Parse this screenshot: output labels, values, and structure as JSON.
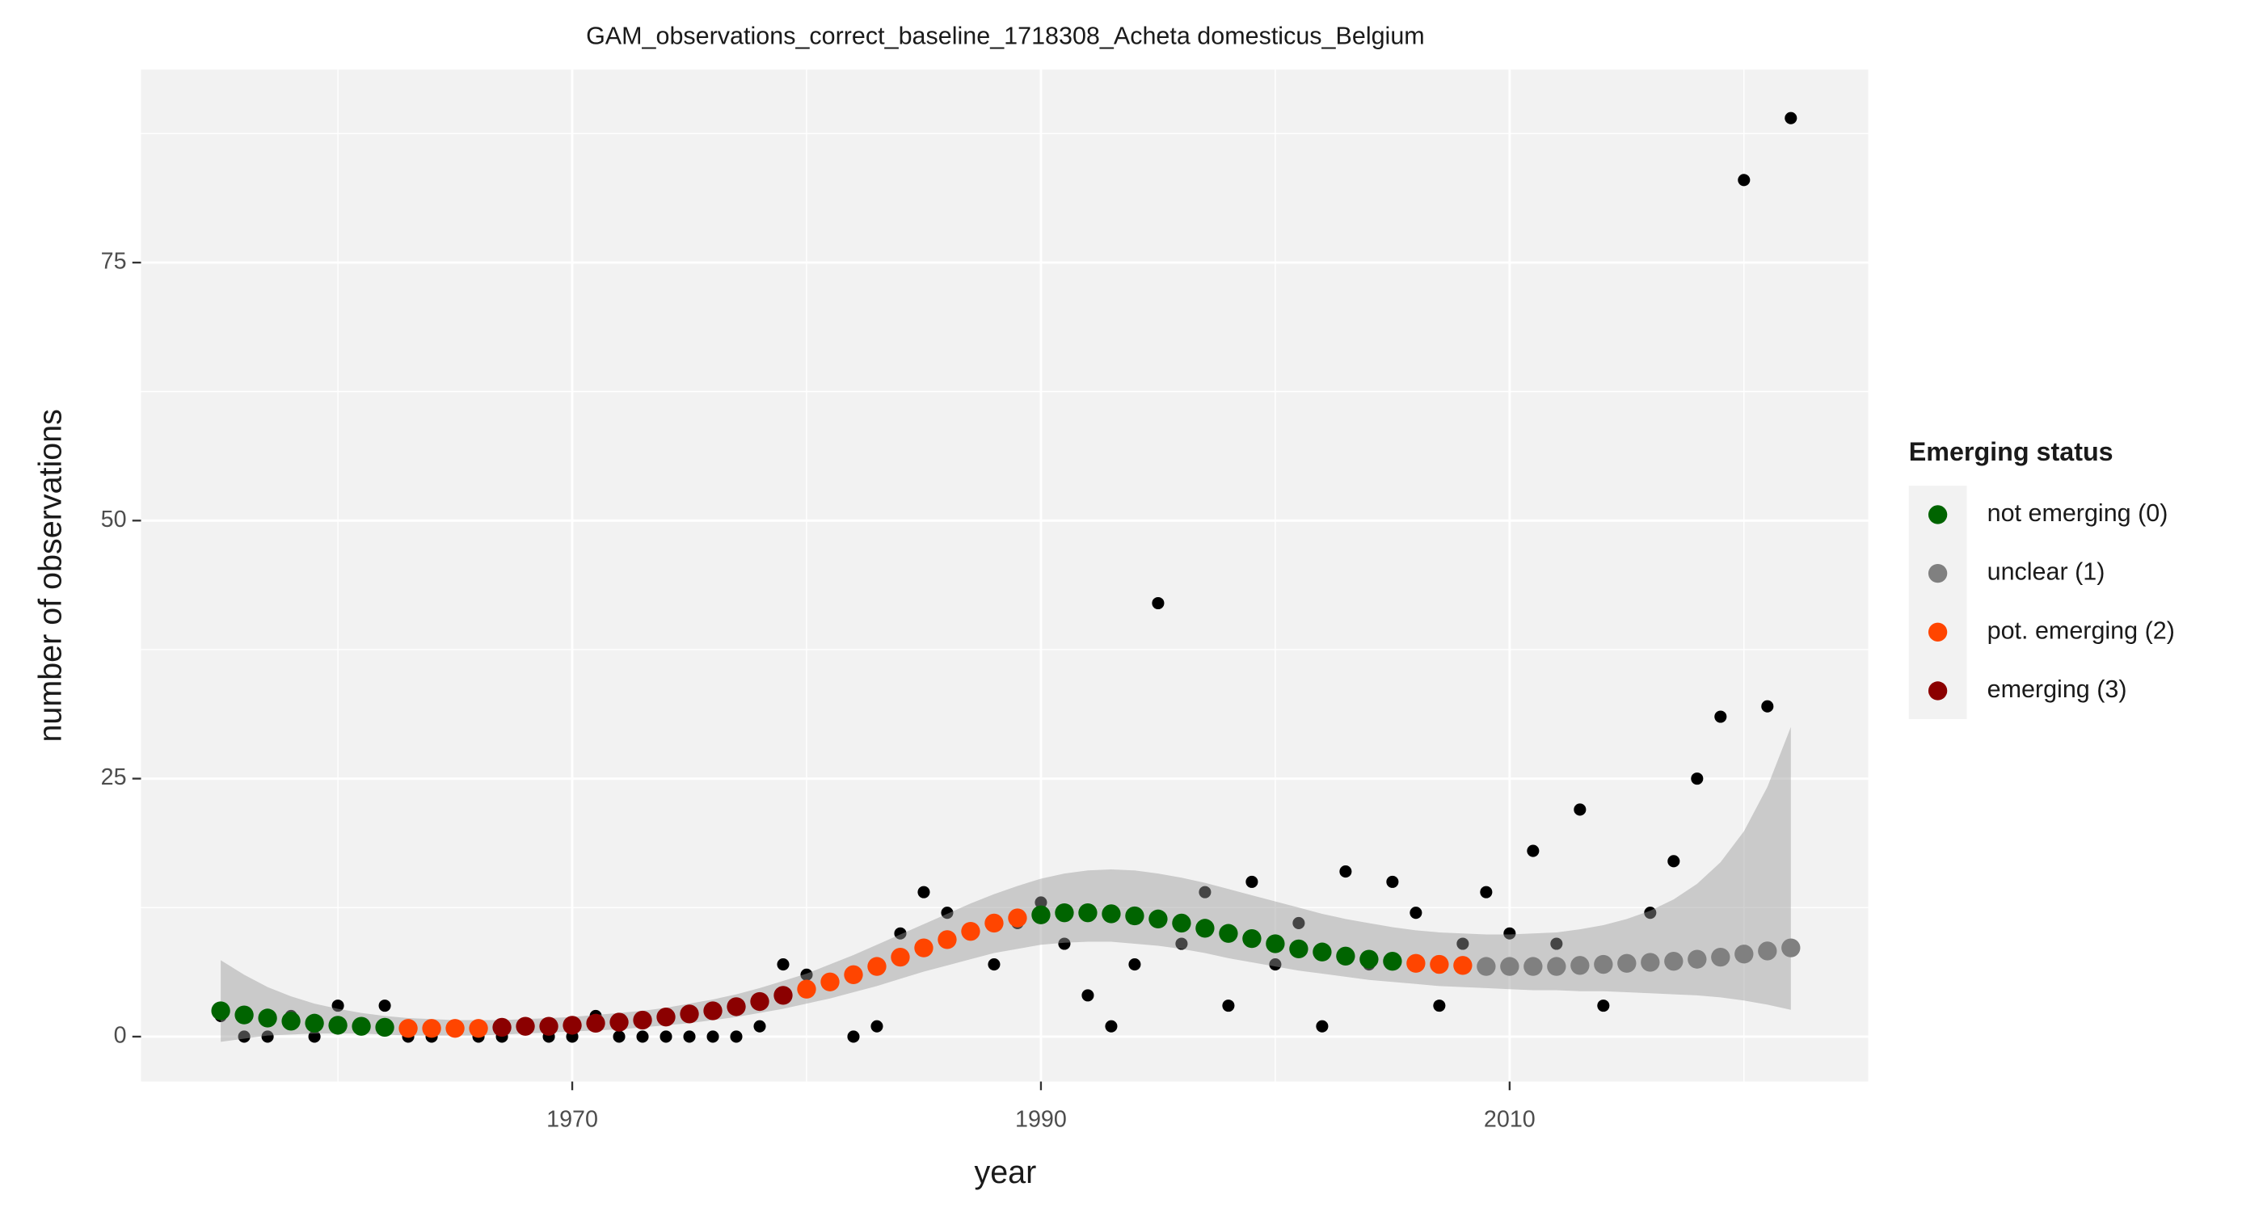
{
  "chart_data": {
    "type": "scatter",
    "title": "GAM_observations_correct_baseline_1718308_Acheta domesticus_Belgium",
    "x_label": "year",
    "y_label": "number of observations",
    "x": [
      1955,
      1956,
      1957,
      1958,
      1959,
      1960,
      1961,
      1962,
      1963,
      1964,
      1965,
      1966,
      1967,
      1968,
      1969,
      1970,
      1971,
      1972,
      1973,
      1974,
      1975,
      1976,
      1977,
      1978,
      1979,
      1980,
      1981,
      1982,
      1983,
      1984,
      1985,
      1986,
      1987,
      1988,
      1989,
      1990,
      1991,
      1992,
      1993,
      1994,
      1995,
      1996,
      1997,
      1998,
      1999,
      2000,
      2001,
      2002,
      2003,
      2004,
      2005,
      2006,
      2007,
      2008,
      2009,
      2010,
      2011,
      2012,
      2013,
      2014,
      2015,
      2016,
      2017,
      2018,
      2019,
      2020,
      2021,
      2022
    ],
    "observed": [
      2,
      0,
      0,
      2,
      0,
      3,
      1,
      3,
      0,
      0,
      1,
      0,
      0,
      1,
      0,
      0,
      2,
      0,
      0,
      0,
      0,
      0,
      0,
      1,
      7,
      6,
      5,
      0,
      1,
      10,
      14,
      12,
      10,
      7,
      11,
      13,
      9,
      4,
      1,
      7,
      42,
      9,
      14,
      3,
      15,
      7,
      11,
      1,
      16,
      7,
      15,
      12,
      3,
      9,
      14,
      10,
      18,
      9,
      22,
      3,
      7,
      12,
      17,
      25,
      31,
      83,
      32,
      89
    ],
    "observed_color": "#000000",
    "fitted": [
      2.5,
      2.1,
      1.8,
      1.5,
      1.3,
      1.1,
      1.0,
      0.9,
      0.8,
      0.8,
      0.8,
      0.8,
      0.9,
      1.0,
      1.0,
      1.1,
      1.3,
      1.4,
      1.6,
      1.9,
      2.2,
      2.5,
      2.9,
      3.4,
      4.0,
      4.6,
      5.3,
      6.0,
      6.8,
      7.7,
      8.6,
      9.4,
      10.2,
      11.0,
      11.5,
      11.8,
      12.0,
      12.0,
      11.9,
      11.7,
      11.4,
      11.0,
      10.5,
      10.0,
      9.5,
      9.0,
      8.5,
      8.2,
      7.8,
      7.5,
      7.3,
      7.1,
      7.0,
      6.9,
      6.8,
      6.8,
      6.8,
      6.8,
      6.9,
      7.0,
      7.1,
      7.2,
      7.3,
      7.5,
      7.7,
      8.0,
      8.3,
      8.6
    ],
    "status": [
      0,
      0,
      0,
      0,
      0,
      0,
      0,
      0,
      2,
      2,
      2,
      2,
      3,
      3,
      3,
      3,
      3,
      3,
      3,
      3,
      3,
      3,
      3,
      3,
      3,
      2,
      2,
      2,
      2,
      2,
      2,
      2,
      2,
      2,
      2,
      0,
      0,
      0,
      0,
      0,
      0,
      0,
      0,
      0,
      0,
      0,
      0,
      0,
      0,
      0,
      0,
      2,
      2,
      2,
      1,
      1,
      1,
      1,
      1,
      1,
      1,
      1,
      1,
      1,
      1,
      1,
      1,
      1
    ],
    "lower": [
      -0.5,
      -0.2,
      0.1,
      0.2,
      0.3,
      0.3,
      0.3,
      0.2,
      0.1,
      0.1,
      0.1,
      0.1,
      0.2,
      0.3,
      0.4,
      0.5,
      0.6,
      0.7,
      0.9,
      1.1,
      1.3,
      1.6,
      1.9,
      2.3,
      2.7,
      3.2,
      3.7,
      4.3,
      4.9,
      5.6,
      6.3,
      6.9,
      7.5,
      8.1,
      8.5,
      8.9,
      9.1,
      9.2,
      9.2,
      9.0,
      8.8,
      8.5,
      8.1,
      7.6,
      7.2,
      6.8,
      6.4,
      6.1,
      5.8,
      5.5,
      5.3,
      5.1,
      4.9,
      4.8,
      4.7,
      4.6,
      4.5,
      4.5,
      4.4,
      4.4,
      4.3,
      4.2,
      4.1,
      4.0,
      3.8,
      3.5,
      3.1,
      2.6
    ],
    "upper": [
      7.4,
      6,
      4.8,
      3.9,
      3.2,
      2.7,
      2.3,
      2.0,
      1.8,
      1.7,
      1.6,
      1.6,
      1.6,
      1.7,
      1.8,
      1.9,
      2.1,
      2.3,
      2.5,
      2.8,
      3.2,
      3.6,
      4.1,
      4.7,
      5.4,
      6.1,
      7.0,
      7.9,
      8.9,
      9.9,
      10.9,
      11.9,
      12.9,
      13.8,
      14.6,
      15.3,
      15.8,
      16.1,
      16.2,
      16.1,
      15.8,
      15.4,
      14.9,
      14.3,
      13.7,
      13.1,
      12.5,
      11.9,
      11.4,
      11.0,
      10.6,
      10.3,
      10.1,
      10.0,
      9.9,
      9.9,
      10.0,
      10.1,
      10.4,
      10.8,
      11.4,
      12.2,
      13.3,
      14.8,
      16.9,
      19.9,
      24.2,
      30.0
    ],
    "band_color": "#999999",
    "legend": {
      "title": "Emerging status",
      "position": "right",
      "entries": [
        {
          "name": "not emerging (0)",
          "color": "#006400"
        },
        {
          "name": "unclear (1)",
          "color": "#808080"
        },
        {
          "name": "pot. emerging (2)",
          "color": "#ff4500"
        },
        {
          "name": "emerging (3)",
          "color": "#8b0000"
        }
      ]
    },
    "xlim": [
      1951.6,
      2025.3
    ],
    "xticks": [
      1970,
      1990,
      2010
    ],
    "minor_xticks": [
      1960,
      1980,
      2000,
      2020
    ],
    "ylim": [
      -4.35,
      93.7
    ],
    "yticks": [
      0,
      25,
      50,
      75
    ],
    "minor_yticks": [
      12.5,
      37.5,
      62.5,
      87.5
    ],
    "grid": true
  }
}
